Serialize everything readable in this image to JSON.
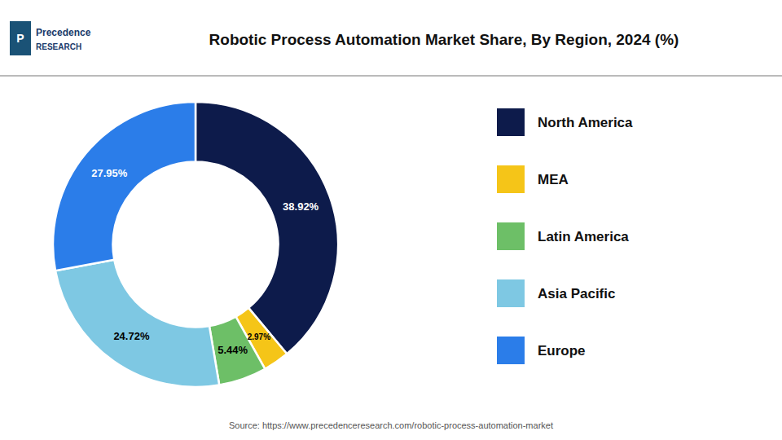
{
  "chart_data": {
    "type": "pie",
    "title": "Robotic Process Automation Market Share, By Region, 2024 (%)",
    "categories": [
      "North America",
      "MEA",
      "Latin America",
      "Asia Pacific",
      "Europe"
    ],
    "values": [
      38.92,
      2.97,
      5.44,
      24.72,
      27.95
    ],
    "value_labels": [
      "38.92%",
      "2.97%",
      "5.44%",
      "24.72%",
      "27.95%"
    ],
    "colors": [
      "#0d1b4b",
      "#f5c518",
      "#6dbf67",
      "#7ec8e3",
      "#2b7de9"
    ],
    "data_labels": true,
    "legend": "right",
    "annotations": [
      "P",
      "Precedence",
      "RESEARCH",
      "Source: https://www.precedenceresearch.com/robotic-process-automation-market"
    ]
  }
}
